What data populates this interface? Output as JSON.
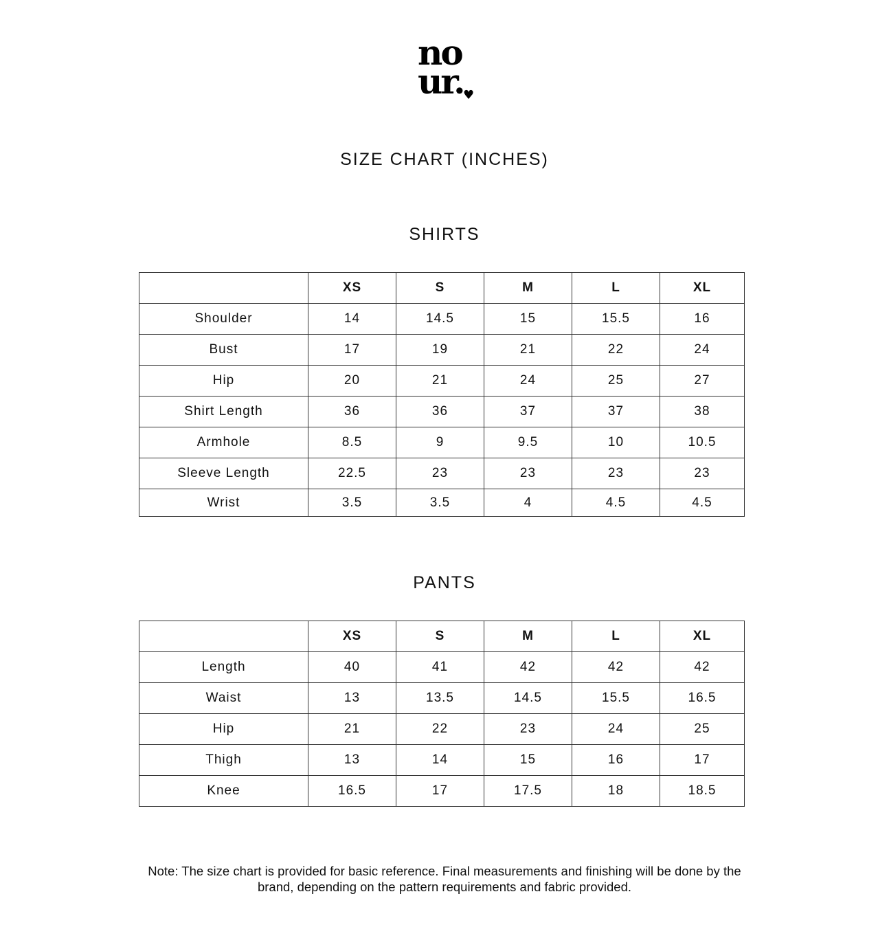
{
  "logo": {
    "line1": "no",
    "line2": "ur.",
    "heart": "♥"
  },
  "title": "SIZE CHART (INCHES)",
  "sizes": [
    "XS",
    "S",
    "M",
    "L",
    "XL"
  ],
  "shirts": {
    "heading": "SHIRTS",
    "rows": [
      {
        "label": "Shoulder",
        "values": [
          "14",
          "14.5",
          "15",
          "15.5",
          "16"
        ]
      },
      {
        "label": "Bust",
        "values": [
          "17",
          "19",
          "21",
          "22",
          "24"
        ]
      },
      {
        "label": "Hip",
        "values": [
          "20",
          "21",
          "24",
          "25",
          "27"
        ]
      },
      {
        "label": "Shirt Length",
        "values": [
          "36",
          "36",
          "37",
          "37",
          "38"
        ]
      },
      {
        "label": "Armhole",
        "values": [
          "8.5",
          "9",
          "9.5",
          "10",
          "10.5"
        ]
      },
      {
        "label": "Sleeve Length",
        "values": [
          "22.5",
          "23",
          "23",
          "23",
          "23"
        ]
      },
      {
        "label": "Wrist",
        "values": [
          "3.5",
          "3.5",
          "4",
          "4.5",
          "4.5"
        ]
      }
    ]
  },
  "pants": {
    "heading": "PANTS",
    "rows": [
      {
        "label": "Length",
        "values": [
          "40",
          "41",
          "42",
          "42",
          "42"
        ]
      },
      {
        "label": "Waist",
        "values": [
          "13",
          "13.5",
          "14.5",
          "15.5",
          "16.5"
        ]
      },
      {
        "label": "Hip",
        "values": [
          "21",
          "22",
          "23",
          "24",
          "25"
        ]
      },
      {
        "label": "Thigh",
        "values": [
          "13",
          "14",
          "15",
          "16",
          "17"
        ]
      },
      {
        "label": "Knee",
        "values": [
          "16.5",
          "17",
          "17.5",
          "18",
          "18.5"
        ]
      }
    ]
  },
  "note": {
    "line1": "Note: The size chart is provided for basic reference. Final measurements and finishing will be done by the",
    "line2": "brand, depending on the pattern requirements and fabric provided."
  }
}
